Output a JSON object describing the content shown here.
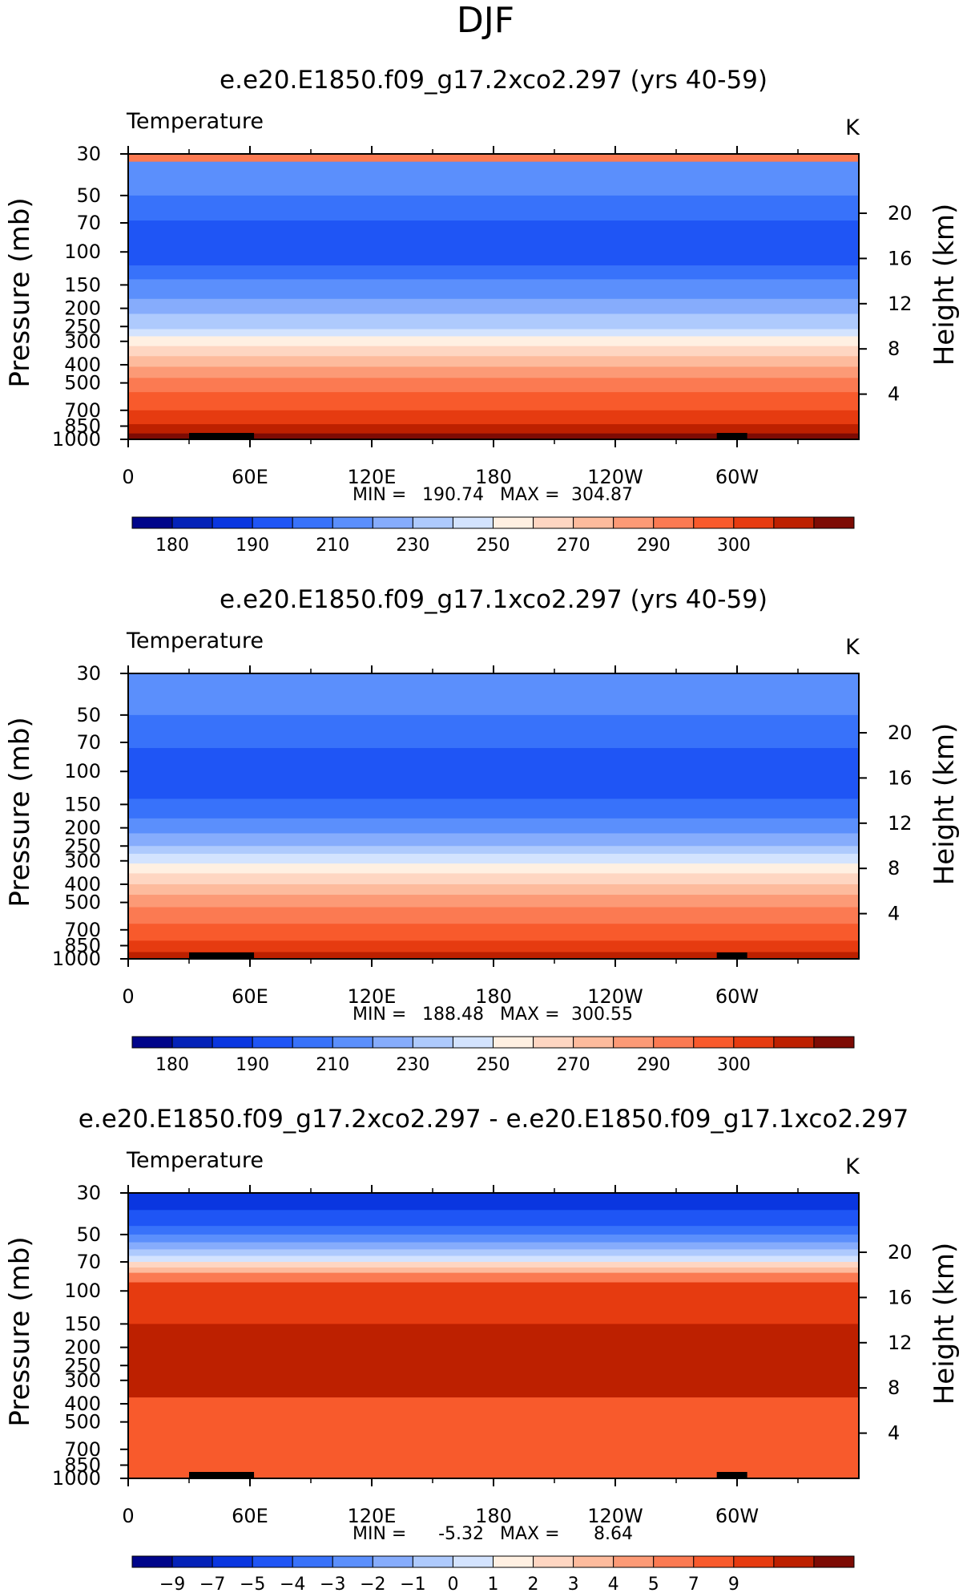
{
  "page_title": "DJF",
  "chart_data": [
    {
      "type": "contour",
      "title": "e.e20.E1850.f09_g17.2xco2.297 (yrs 40-59)",
      "left_label": "Temperature",
      "right_label": "K",
      "ylabel": "Pressure (mb)",
      "y2label": "Height (km)",
      "y_ticks": [
        "30",
        "50",
        "70",
        "100",
        "150",
        "200",
        "250",
        "300",
        "400",
        "500",
        "700",
        "850",
        "1000"
      ],
      "y_tick_values": [
        30,
        50,
        70,
        100,
        150,
        200,
        250,
        300,
        400,
        500,
        700,
        850,
        1000
      ],
      "y2_ticks": [
        "20",
        "16",
        "12",
        "8",
        "4"
      ],
      "y2_tick_values": [
        20,
        16,
        12,
        8,
        4
      ],
      "x_ticks": [
        "0",
        "60E",
        "120E",
        "180",
        "120W",
        "60W"
      ],
      "x_tick_values": [
        0,
        60,
        120,
        180,
        240,
        300
      ],
      "xlim": [
        0,
        360
      ],
      "ylim": [
        1000,
        30
      ],
      "y_scale": "log",
      "min_label": "MIN =",
      "min_value": "190.74",
      "max_label": "MAX =",
      "max_value": "304.87",
      "colorbar": {
        "labels": [
          "180",
          "190",
          "210",
          "230",
          "250",
          "270",
          "290",
          "300"
        ],
        "colors": [
          "#00058a",
          "#0422b8",
          "#0a36e0",
          "#1f55f5",
          "#3872fa",
          "#5b8ffc",
          "#86acfc",
          "#aecafd",
          "#d3e3fe",
          "#fff0e2",
          "#fed6c2",
          "#fdbb9d",
          "#fc9a76",
          "#fb7a52",
          "#f85a2c",
          "#e63b10",
          "#bd2000",
          "#7d0b04"
        ]
      },
      "level_bounds_hpa": [
        [
          30,
          33,
          13
        ],
        [
          33,
          50,
          5
        ],
        [
          50,
          68,
          4
        ],
        [
          68,
          118,
          3
        ],
        [
          118,
          140,
          4
        ],
        [
          140,
          178,
          5
        ],
        [
          178,
          214,
          6
        ],
        [
          214,
          258,
          7
        ],
        [
          258,
          282,
          8
        ],
        [
          282,
          318,
          9
        ],
        [
          318,
          360,
          10
        ],
        [
          360,
          410,
          11
        ],
        [
          410,
          470,
          12
        ],
        [
          470,
          560,
          13
        ],
        [
          560,
          700,
          14
        ],
        [
          700,
          830,
          15
        ],
        [
          830,
          930,
          16
        ],
        [
          930,
          1000,
          17
        ]
      ]
    },
    {
      "type": "contour",
      "title": "e.e20.E1850.f09_g17.1xco2.297 (yrs 40-59)",
      "left_label": "Temperature",
      "right_label": "K",
      "ylabel": "Pressure (mb)",
      "y2label": "Height (km)",
      "y_ticks": [
        "30",
        "50",
        "70",
        "100",
        "150",
        "200",
        "250",
        "300",
        "400",
        "500",
        "700",
        "850",
        "1000"
      ],
      "y_tick_values": [
        30,
        50,
        70,
        100,
        150,
        200,
        250,
        300,
        400,
        500,
        700,
        850,
        1000
      ],
      "y2_ticks": [
        "20",
        "16",
        "12",
        "8",
        "4"
      ],
      "y2_tick_values": [
        20,
        16,
        12,
        8,
        4
      ],
      "x_ticks": [
        "0",
        "60E",
        "120E",
        "180",
        "120W",
        "60W"
      ],
      "x_tick_values": [
        0,
        60,
        120,
        180,
        240,
        300
      ],
      "xlim": [
        0,
        360
      ],
      "ylim": [
        1000,
        30
      ],
      "y_scale": "log",
      "min_label": "MIN =",
      "min_value": "188.48",
      "max_label": "MAX =",
      "max_value": "300.55",
      "colorbar": {
        "labels": [
          "180",
          "190",
          "210",
          "230",
          "250",
          "270",
          "290",
          "300"
        ],
        "colors": [
          "#00058a",
          "#0422b8",
          "#0a36e0",
          "#1f55f5",
          "#3872fa",
          "#5b8ffc",
          "#86acfc",
          "#aecafd",
          "#d3e3fe",
          "#fff0e2",
          "#fed6c2",
          "#fdbb9d",
          "#fc9a76",
          "#fb7a52",
          "#f85a2c",
          "#e63b10",
          "#bd2000",
          "#7d0b04"
        ]
      },
      "level_bounds_hpa": [
        [
          30,
          50,
          5
        ],
        [
          50,
          75,
          4
        ],
        [
          75,
          140,
          3
        ],
        [
          140,
          178,
          4
        ],
        [
          178,
          214,
          5
        ],
        [
          214,
          250,
          6
        ],
        [
          250,
          275,
          7
        ],
        [
          275,
          310,
          8
        ],
        [
          310,
          350,
          9
        ],
        [
          350,
          400,
          10
        ],
        [
          400,
          455,
          11
        ],
        [
          455,
          530,
          12
        ],
        [
          530,
          650,
          13
        ],
        [
          650,
          800,
          14
        ],
        [
          800,
          920,
          15
        ],
        [
          920,
          1000,
          16
        ]
      ]
    },
    {
      "type": "contour",
      "title": "e.e20.E1850.f09_g17.2xco2.297 - e.e20.E1850.f09_g17.1xco2.297",
      "left_label": "Temperature",
      "right_label": "K",
      "ylabel": "Pressure (mb)",
      "y2label": "Height (km)",
      "y_ticks": [
        "30",
        "50",
        "70",
        "100",
        "150",
        "200",
        "250",
        "300",
        "400",
        "500",
        "700",
        "850",
        "1000"
      ],
      "y_tick_values": [
        30,
        50,
        70,
        100,
        150,
        200,
        250,
        300,
        400,
        500,
        700,
        850,
        1000
      ],
      "y2_ticks": [
        "20",
        "16",
        "12",
        "8",
        "4"
      ],
      "y2_tick_values": [
        20,
        16,
        12,
        8,
        4
      ],
      "x_ticks": [
        "0",
        "60E",
        "120E",
        "180",
        "120W",
        "60W"
      ],
      "x_tick_values": [
        0,
        60,
        120,
        180,
        240,
        300
      ],
      "xlim": [
        0,
        360
      ],
      "ylim": [
        1000,
        30
      ],
      "y_scale": "log",
      "min_label": "MIN =",
      "min_value": "-5.32",
      "max_label": "MAX =",
      "max_value": "8.64",
      "colorbar": {
        "labels": [
          "−9",
          "−7",
          "−5",
          "−4",
          "−3",
          "−2",
          "−1",
          "0",
          "1",
          "2",
          "3",
          "4",
          "5",
          "7",
          "9"
        ],
        "colors": [
          "#00058a",
          "#0422b8",
          "#0a36e0",
          "#1f55f5",
          "#3872fa",
          "#5b8ffc",
          "#86acfc",
          "#aecafd",
          "#d3e3fe",
          "#fff0e2",
          "#fed6c2",
          "#fdbb9d",
          "#fc9a76",
          "#fb7a52",
          "#f85a2c",
          "#e63b10",
          "#bd2000",
          "#7d0b04"
        ]
      },
      "level_bounds_hpa": [
        [
          30,
          37,
          2
        ],
        [
          37,
          45,
          3
        ],
        [
          45,
          50,
          4
        ],
        [
          50,
          55,
          5
        ],
        [
          55,
          60,
          6
        ],
        [
          60,
          65,
          7
        ],
        [
          65,
          70,
          8
        ],
        [
          70,
          75,
          10
        ],
        [
          75,
          80,
          11
        ],
        [
          80,
          90,
          13
        ],
        [
          90,
          150,
          15
        ],
        [
          150,
          370,
          16
        ],
        [
          370,
          1000,
          14
        ]
      ]
    }
  ]
}
